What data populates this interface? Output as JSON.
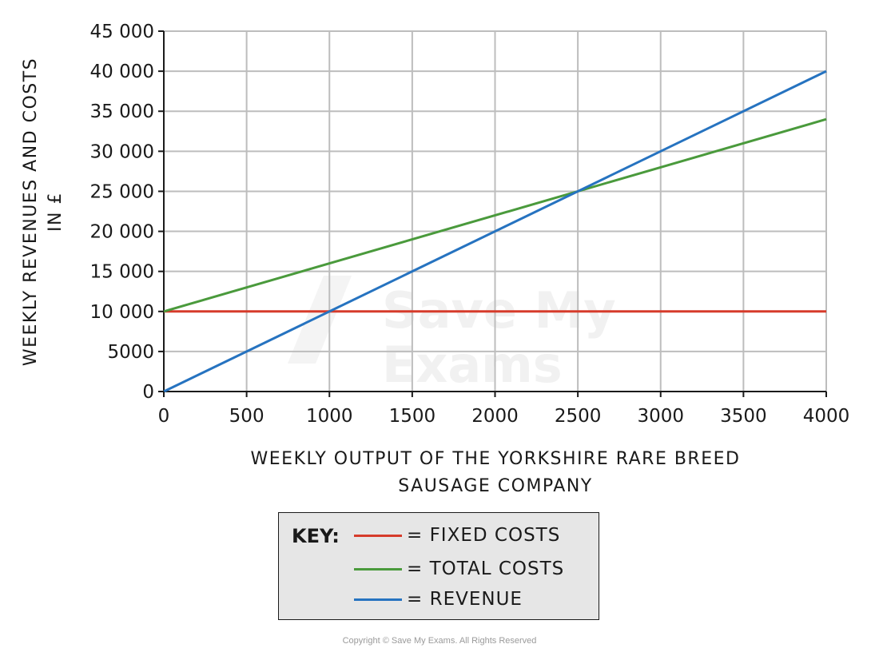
{
  "chart_data": {
    "type": "line",
    "title": "",
    "xlabel_lines": [
      "WEEKLY OUTPUT OF THE YORKSHIRE RARE BREED",
      "SAUSAGE COMPANY"
    ],
    "ylabel_lines": [
      "WEEKLY REVENUES AND COSTS",
      "IN £"
    ],
    "xlim": [
      0,
      4000
    ],
    "ylim": [
      0,
      45000
    ],
    "xticks": [
      0,
      500,
      1000,
      1500,
      2000,
      2500,
      3000,
      3500,
      4000
    ],
    "xtick_labels": [
      "0",
      "500",
      "1000",
      "1500",
      "2000",
      "2500",
      "3000",
      "3500",
      "4000"
    ],
    "yticks": [
      0,
      5000,
      10000,
      15000,
      20000,
      25000,
      30000,
      35000,
      40000,
      45000
    ],
    "ytick_labels": [
      "0",
      "5000",
      "10 000",
      "15 000",
      "20 000",
      "25 000",
      "30 000",
      "35 000",
      "40 000",
      "45 000"
    ],
    "grid": true,
    "series": [
      {
        "name": "FIXED COSTS",
        "color": "#d63b2b",
        "x": [
          0,
          4000
        ],
        "y": [
          10000,
          10000
        ]
      },
      {
        "name": "TOTAL COSTS",
        "color": "#4a9a3c",
        "x": [
          0,
          4000
        ],
        "y": [
          10000,
          34000
        ]
      },
      {
        "name": "REVENUE",
        "color": "#2673c0",
        "x": [
          0,
          4000
        ],
        "y": [
          0,
          40000
        ]
      }
    ],
    "legend_position": "bottom-center"
  },
  "legend": {
    "key_label": "KEY:",
    "items": [
      "= FIXED  COSTS",
      "= TOTAL  COSTS",
      "= REVENUE"
    ]
  },
  "watermark": [
    "Save My",
    "Exams"
  ],
  "copyright": "Copyright © Save My Exams. All Rights Reserved"
}
